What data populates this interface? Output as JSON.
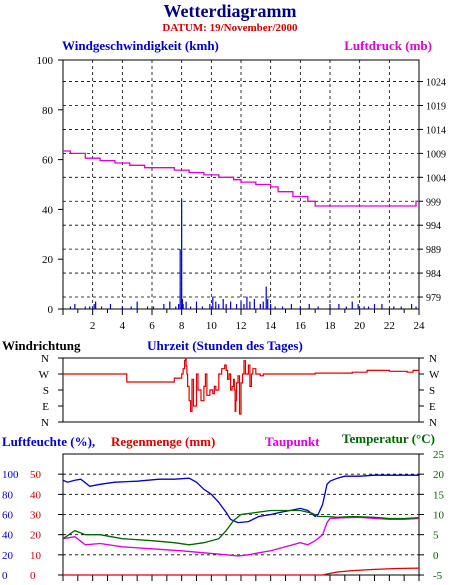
{
  "title": "Wetterdiagramm",
  "date_label": "DATUM: 19/November/2000",
  "colors": {
    "title": "#000080",
    "date": "#cc0000",
    "wind": "#0000cc",
    "pressure": "#dd00dd",
    "direction": "#dd0000",
    "humidity": "#0000cc",
    "rain": "#dd0000",
    "dewpoint": "#dd00dd",
    "temperature": "#006600",
    "grid": "#000000"
  },
  "chart_data": [
    {
      "type": "line",
      "panel": "wind-pressure",
      "y_left_label": "Windgeschwindigkeit (kmh)",
      "y_right_label": "Luftdruck (mb)",
      "xlim": [
        0,
        24
      ],
      "x_ticks": [
        2,
        4,
        6,
        8,
        10,
        12,
        14,
        16,
        18,
        20,
        22,
        24
      ],
      "y_left_ticks": [
        0,
        20,
        40,
        60,
        80,
        100
      ],
      "y_left_lim": [
        0,
        100
      ],
      "y_right_ticks": [
        979,
        984,
        989,
        994,
        999,
        1004,
        1009,
        1014,
        1019,
        1024
      ],
      "y_right_lim": [
        976.5,
        1028.5
      ],
      "grid": true,
      "series": [
        {
          "name": "Windgeschwindigkeit (kmh)",
          "axis": "left",
          "style": "spikes",
          "x": [
            0.5,
            0.8,
            1.5,
            1.8,
            2.1,
            2.2,
            2.6,
            3.2,
            4.0,
            4.6,
            5.0,
            5.7,
            6.1,
            6.8,
            7.2,
            7.6,
            7.8,
            7.9,
            8.0,
            8.05,
            8.1,
            8.3,
            8.6,
            9.0,
            9.4,
            9.9,
            10.1,
            10.3,
            10.5,
            10.8,
            11.0,
            11.3,
            11.7,
            12.0,
            12.2,
            12.4,
            12.6,
            12.9,
            13.3,
            13.5,
            13.7,
            13.8,
            14.0,
            14.3,
            14.8,
            15.4,
            16.0,
            16.6,
            17.2,
            18.0,
            18.6,
            19.1,
            19.5,
            19.9,
            20.3,
            20.6,
            21.0,
            21.5,
            22.3,
            22.8,
            23.5,
            23.8
          ],
          "values": [
            1,
            2,
            1,
            1,
            2,
            3,
            1,
            2,
            1,
            1,
            3,
            1,
            1,
            2,
            3,
            1,
            2,
            24,
            44,
            4,
            2,
            3,
            1,
            3,
            1,
            2,
            5,
            3,
            2,
            4,
            2,
            3,
            2,
            3,
            2,
            5,
            3,
            4,
            2,
            3,
            9,
            4,
            2,
            1,
            1,
            2,
            1,
            2,
            1,
            2,
            2,
            1,
            3,
            2,
            1,
            1,
            2,
            2,
            1,
            1,
            2,
            1
          ]
        },
        {
          "name": "Luftdruck (mb)",
          "axis": "right",
          "style": "step",
          "x": [
            0,
            0.5,
            1.5,
            2.5,
            3.5,
            4.5,
            5.5,
            6.5,
            7.5,
            8.5,
            9.5,
            10.5,
            11.5,
            12.0,
            13.0,
            14.0,
            14.5,
            15.5,
            16.5,
            17.0,
            18.5,
            20.5,
            22.0,
            23.5,
            23.8,
            24
          ],
          "values": [
            1009.5,
            1009,
            1008,
            1007.5,
            1007,
            1006.5,
            1006,
            1006,
            1005.5,
            1005,
            1004.5,
            1004,
            1003.5,
            1003,
            1002.5,
            1002,
            1001,
            1000,
            999,
            998,
            998,
            998,
            998,
            998,
            999,
            999
          ]
        }
      ]
    },
    {
      "type": "line",
      "panel": "wind-direction",
      "ylabel": "Windrichtung",
      "xlabel": "Uhrzeit (Stunden des Tages)",
      "y_categories": [
        "N",
        "W",
        "S",
        "E",
        "N"
      ],
      "xlim": [
        0,
        24
      ],
      "series": [
        {
          "name": "Windrichtung",
          "style": "step",
          "x": [
            0,
            4,
            4.3,
            5,
            6,
            7,
            7.5,
            8.0,
            8.1,
            8.2,
            8.25,
            8.3,
            8.35,
            8.4,
            8.5,
            8.6,
            8.7,
            8.8,
            9.0,
            9.1,
            9.3,
            9.5,
            9.6,
            9.7,
            9.9,
            10.1,
            10.2,
            10.3,
            10.5,
            10.7,
            10.9,
            11.0,
            11.1,
            11.2,
            11.3,
            11.4,
            11.5,
            11.55,
            11.6,
            11.65,
            11.7,
            11.8,
            11.9,
            12.0,
            12.1,
            12.2,
            12.3,
            12.5,
            12.6,
            12.7,
            12.8,
            13.0,
            13.3,
            13.5,
            16.5,
            17,
            19.5,
            20.5,
            22.0,
            23.2,
            23.6,
            24
          ],
          "values": [
            270,
            270,
            225,
            225,
            225,
            225,
            247,
            270,
            300,
            345,
            359,
            315,
            270,
            200,
            120,
            60,
            240,
            90,
            270,
            180,
            120,
            200,
            270,
            150,
            180,
            160,
            200,
            180,
            270,
            300,
            320,
            290,
            240,
            270,
            180,
            200,
            240,
            180,
            60,
            120,
            220,
            260,
            45,
            220,
            270,
            345,
            270,
            320,
            200,
            270,
            300,
            270,
            260,
            270,
            270,
            275,
            280,
            290,
            285,
            280,
            290,
            285
          ]
        }
      ]
    },
    {
      "type": "line",
      "panel": "humidity-temperature",
      "y_left_labels": [
        "Luftfeuchte (%)",
        "Regenmenge (mm)"
      ],
      "y_right_label": "Temperatur (°C)",
      "xlim": [
        0,
        24
      ],
      "y_left_ticks_humidity": [
        0,
        20,
        40,
        60,
        80,
        100
      ],
      "y_left_ticks_rain": [
        0,
        10,
        20,
        30,
        40,
        50
      ],
      "y_left_lim_humidity": [
        0,
        120
      ],
      "y_right_ticks": [
        -5,
        0,
        5,
        10,
        15,
        20,
        25
      ],
      "y_right_lim": [
        -5,
        25
      ],
      "grid": true,
      "series": [
        {
          "name": "Luftfeuchte (%)",
          "axis": "left",
          "x": [
            0,
            0.3,
            0.8,
            1.2,
            1.8,
            2.5,
            3.5,
            5,
            6.5,
            7.5,
            8.5,
            9.0,
            9.5,
            10.0,
            10.5,
            11.0,
            11.3,
            11.8,
            12.5,
            13.2,
            14.0,
            14.6,
            15.3,
            16.0,
            16.5,
            17.0,
            17.2,
            17.5,
            17.8,
            18.0,
            18.5,
            19,
            20,
            21,
            22,
            23,
            24
          ],
          "values": [
            94,
            92,
            94,
            95,
            88,
            90,
            92,
            93,
            95,
            95,
            96,
            92,
            85,
            80,
            72,
            62,
            55,
            52,
            53,
            58,
            60,
            62,
            64,
            66,
            64,
            58,
            60,
            70,
            90,
            93,
            96,
            98,
            98,
            99,
            99,
            99,
            99
          ]
        },
        {
          "name": "Regenmenge (mm)",
          "axis": "left",
          "x": [
            0,
            17.5,
            18.0,
            18.5,
            19.5,
            21,
            22.5,
            24
          ],
          "values": [
            0,
            0,
            0.8,
            1.5,
            2.2,
            2.8,
            3.2,
            3.4
          ]
        },
        {
          "name": "Taupunkt",
          "axis": "right",
          "x": [
            0,
            0.8,
            1.5,
            2.5,
            4,
            6,
            8,
            9.5,
            11,
            11.8,
            12.5,
            13.2,
            14,
            15,
            16,
            16.5,
            17,
            17.5,
            17.8,
            18,
            19,
            20,
            21,
            22,
            23,
            24
          ],
          "values": [
            4,
            4.5,
            2.5,
            2.8,
            2,
            1.5,
            1,
            0.5,
            0,
            -0.3,
            0,
            0.5,
            1,
            2,
            3,
            2.5,
            3.5,
            5,
            8,
            9,
            9.2,
            9.3,
            9.0,
            8.8,
            8.8,
            9
          ]
        },
        {
          "name": "Temperatur (°C)",
          "axis": "right",
          "x": [
            0,
            0.8,
            1.5,
            2.5,
            4,
            6,
            7.5,
            8.5,
            9.5,
            10.5,
            11.0,
            11.5,
            12,
            13,
            14,
            15,
            16,
            16.8,
            17.2,
            17.8,
            18.5,
            19.5,
            21,
            22,
            23,
            24
          ],
          "values": [
            4,
            6,
            5,
            5,
            4,
            3.5,
            3,
            2.5,
            3,
            4,
            6,
            8.5,
            10,
            10.5,
            11,
            11,
            11,
            10.3,
            9.5,
            9.5,
            9.3,
            9.5,
            9.3,
            9.0,
            9.0,
            9.2
          ]
        }
      ]
    }
  ],
  "labels": {
    "wind_left": "Windgeschwindigkeit (kmh)",
    "pressure_right": "Luftdruck (mb)",
    "direction_left": "Windrichtung",
    "time_axis": "Uhrzeit (Stunden des Tages)",
    "humidity_left": "Luftfeuchte (%),",
    "rain_left": "Regenmenge (mm)",
    "dewpoint": "Taupunkt",
    "temperature": "Temperatur (°C)"
  }
}
